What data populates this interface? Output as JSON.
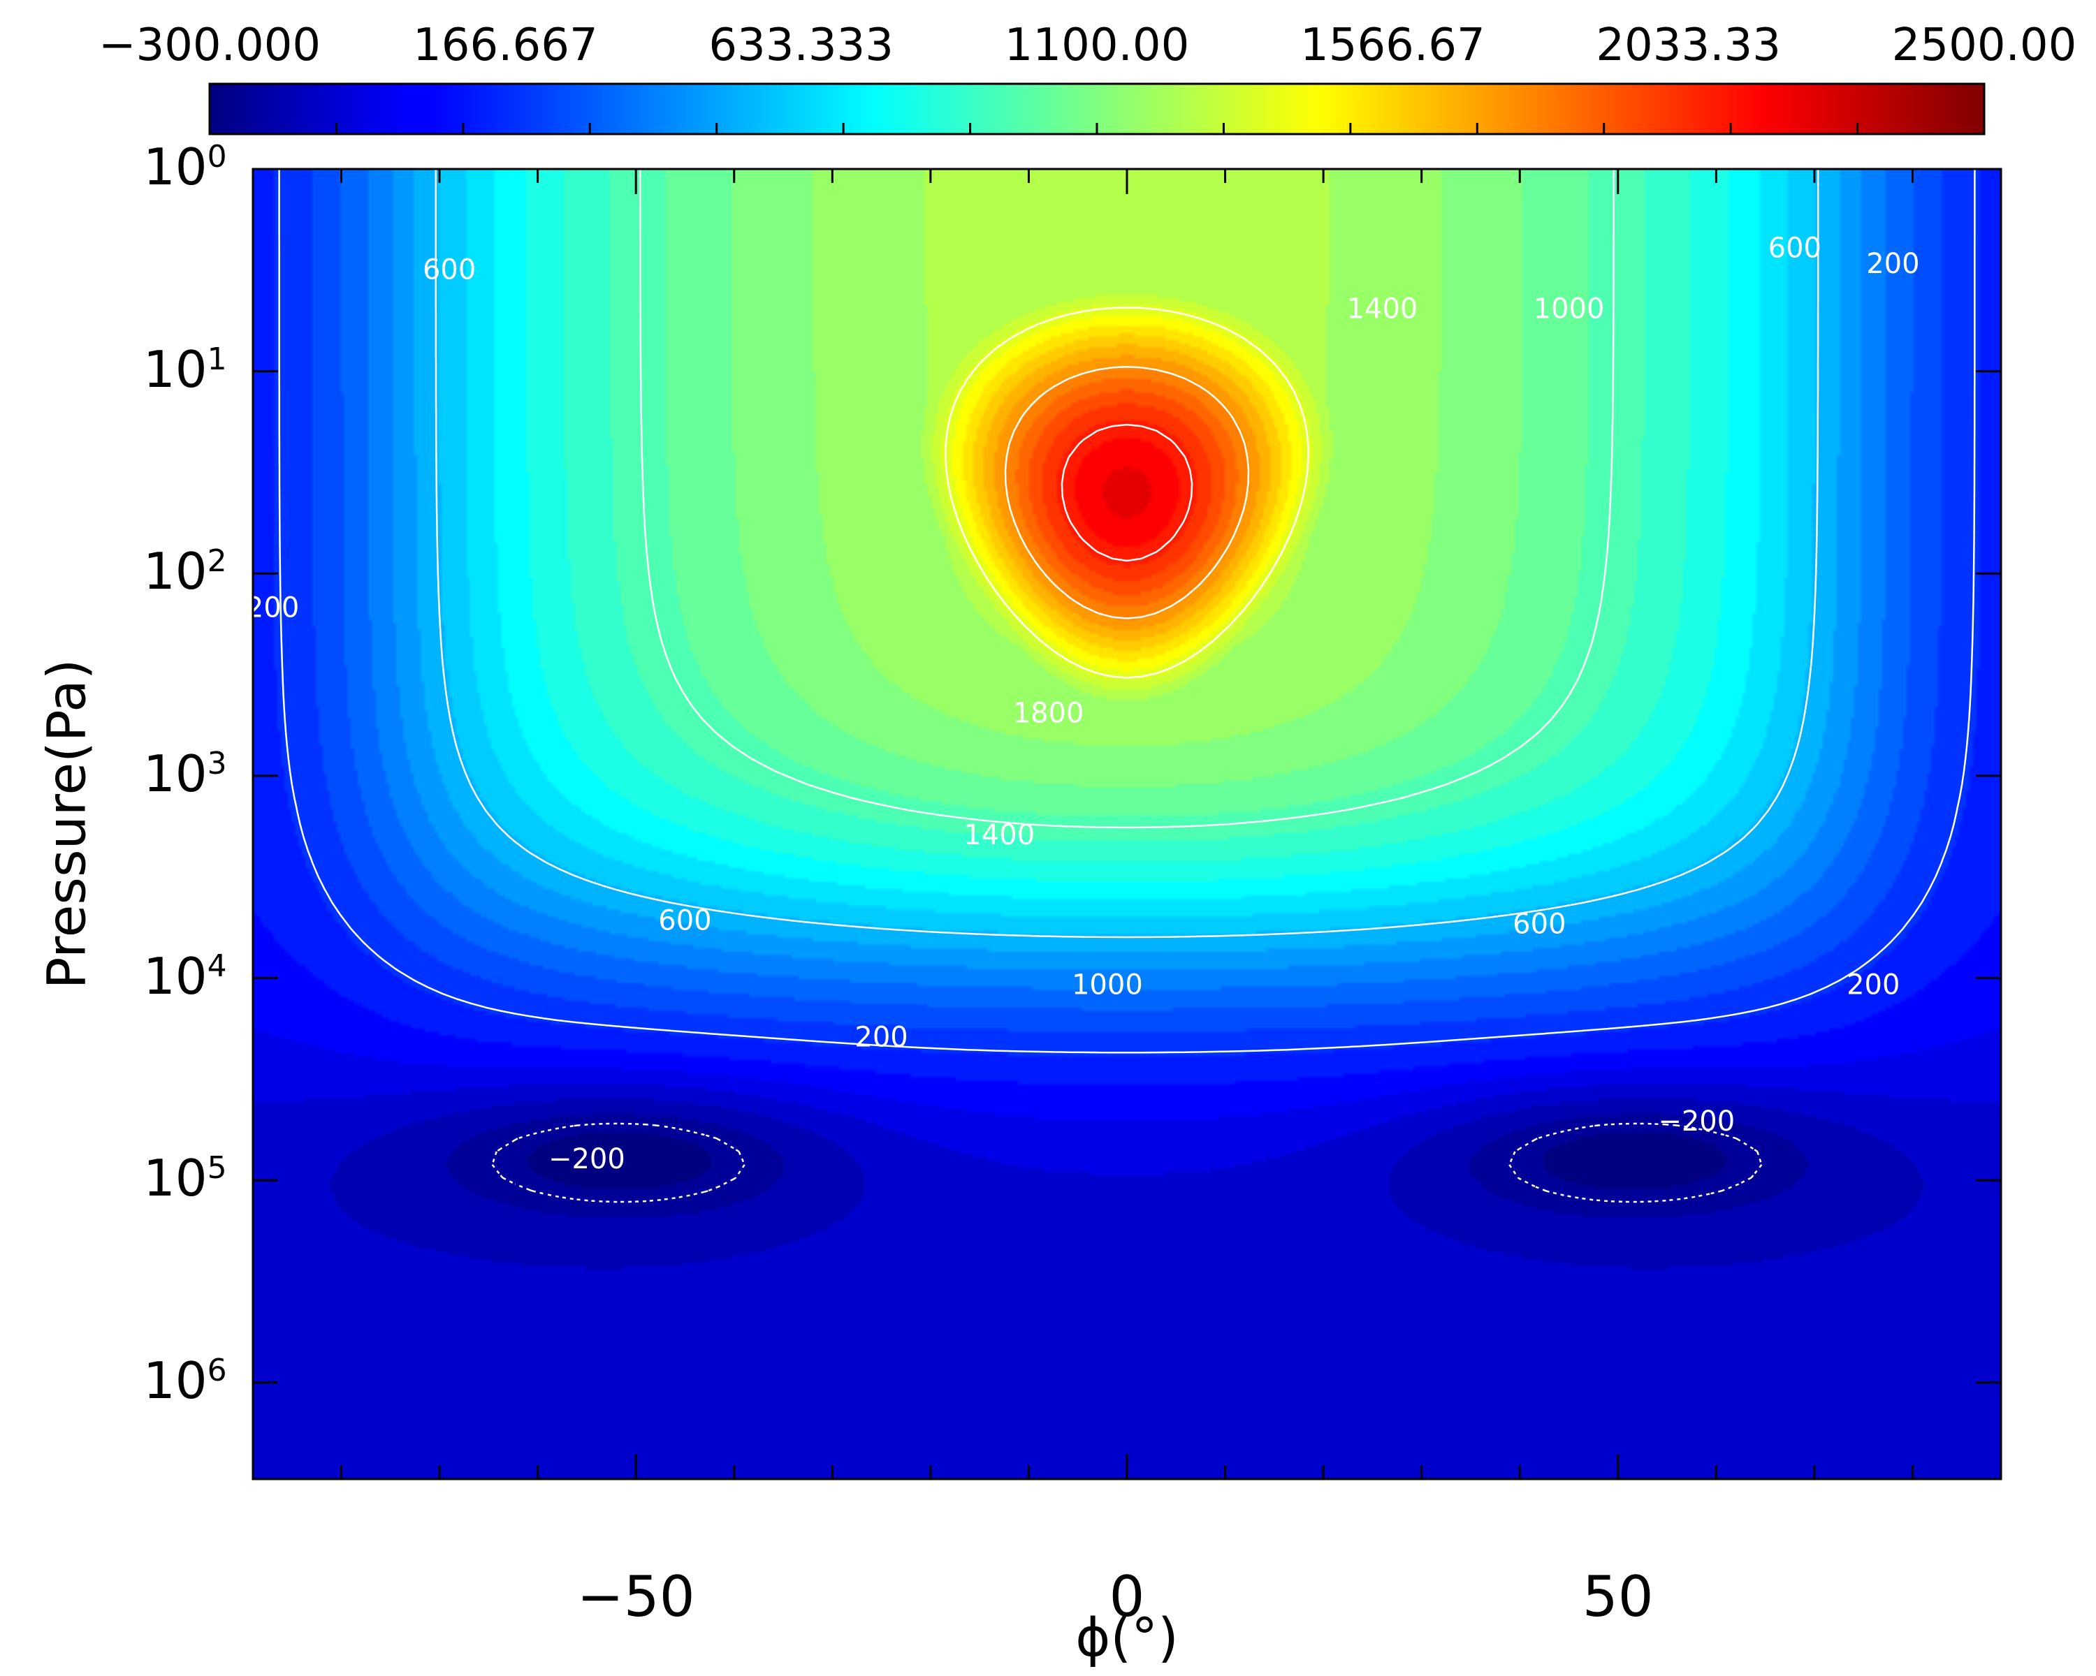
{
  "chart_data": {
    "type": "heatmap",
    "xlabel": "ϕ(°)",
    "ylabel": "Pressure(Pa)",
    "x_ticks": [
      -50,
      0,
      50
    ],
    "y_scale": "log",
    "y_ticks": [
      {
        "base": "10",
        "exp": "0",
        "value": 1
      },
      {
        "base": "10",
        "exp": "1",
        "value": 10
      },
      {
        "base": "10",
        "exp": "2",
        "value": 100
      },
      {
        "base": "10",
        "exp": "3",
        "value": 1000
      },
      {
        "base": "10",
        "exp": "4",
        "value": 10000
      },
      {
        "base": "10",
        "exp": "5",
        "value": 100000
      },
      {
        "base": "10",
        "exp": "6",
        "value": 1000000
      }
    ],
    "xlim": [
      -89,
      89
    ],
    "ylim": [
      1,
      3000000
    ],
    "y_inverted": true,
    "colorbar": {
      "position": "top",
      "colormap": "jet",
      "range": [
        -300,
        2500
      ],
      "tick_labels": [
        "−300.000",
        "166.667",
        "633.333",
        "1100.00",
        "1566.67",
        "2033.33",
        "2500.00"
      ]
    },
    "peak": {
      "x": 0,
      "pressure": 50,
      "value": 2150
    },
    "minima": [
      {
        "x": -52,
        "pressure": 70000,
        "value": -230
      },
      {
        "x": 50,
        "pressure": 70000,
        "value": -230
      }
    ],
    "contour_labels": [
      {
        "text": "600",
        "x": -69,
        "p": 3.2
      },
      {
        "text": "200",
        "x": -87,
        "p": 150
      },
      {
        "text": "1400",
        "x": 26,
        "p": 5
      },
      {
        "text": "1000",
        "x": 45,
        "p": 5
      },
      {
        "text": "600",
        "x": 68,
        "p": 2.5
      },
      {
        "text": "200",
        "x": 78,
        "p": 3
      },
      {
        "text": "1800",
        "x": -8,
        "p": 500
      },
      {
        "text": "1400",
        "x": -13,
        "p": 2000
      },
      {
        "text": "600",
        "x": -45,
        "p": 5300
      },
      {
        "text": "600",
        "x": 42,
        "p": 5500
      },
      {
        "text": "1000",
        "x": -2,
        "p": 11000
      },
      {
        "text": "200",
        "x": -25,
        "p": 20000
      },
      {
        "text": "200",
        "x": 76,
        "p": 11000
      },
      {
        "text": "−200",
        "x": -55,
        "p": 80000
      },
      {
        "text": "−200",
        "x": 58,
        "p": 52000
      }
    ]
  },
  "colors": {
    "ticks": "#000000",
    "contour_lines": "#ffffff"
  }
}
